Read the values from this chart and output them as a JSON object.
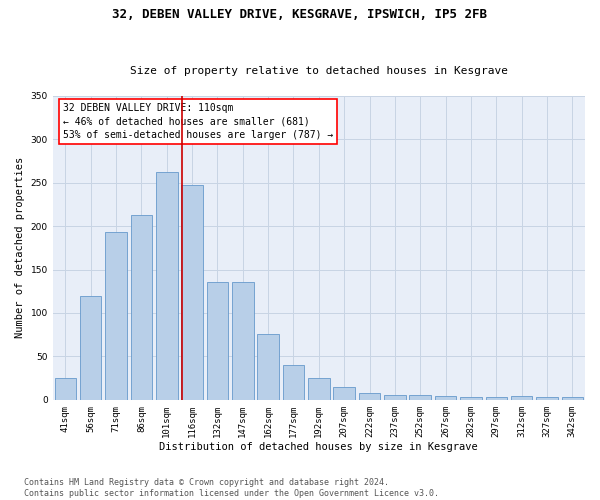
{
  "title1": "32, DEBEN VALLEY DRIVE, KESGRAVE, IPSWICH, IP5 2FB",
  "title2": "Size of property relative to detached houses in Kesgrave",
  "xlabel": "Distribution of detached houses by size in Kesgrave",
  "ylabel": "Number of detached properties",
  "categories": [
    "41sqm",
    "56sqm",
    "71sqm",
    "86sqm",
    "101sqm",
    "116sqm",
    "132sqm",
    "147sqm",
    "162sqm",
    "177sqm",
    "192sqm",
    "207sqm",
    "222sqm",
    "237sqm",
    "252sqm",
    "267sqm",
    "282sqm",
    "297sqm",
    "312sqm",
    "327sqm",
    "342sqm"
  ],
  "values": [
    25,
    120,
    193,
    213,
    262,
    247,
    136,
    136,
    76,
    40,
    25,
    15,
    8,
    6,
    6,
    4,
    3,
    3,
    4,
    3,
    3
  ],
  "bar_color": "#b8cfe8",
  "bar_edge_color": "#6699cc",
  "vline_x": 4.6,
  "annotation_text_line1": "32 DEBEN VALLEY DRIVE: 110sqm",
  "annotation_text_line2": "← 46% of detached houses are smaller (681)",
  "annotation_text_line3": "53% of semi-detached houses are larger (787) →",
  "ylim": [
    0,
    350
  ],
  "yticks": [
    0,
    50,
    100,
    150,
    200,
    250,
    300,
    350
  ],
  "grid_color": "#c8d4e4",
  "background_color": "#e8eef8",
  "vline_color": "#cc0000",
  "footer_line1": "Contains HM Land Registry data © Crown copyright and database right 2024.",
  "footer_line2": "Contains public sector information licensed under the Open Government Licence v3.0.",
  "title_fontsize": 9,
  "subtitle_fontsize": 8,
  "axis_label_fontsize": 7.5,
  "tick_fontsize": 6.5,
  "footer_fontsize": 6,
  "annot_fontsize": 7
}
